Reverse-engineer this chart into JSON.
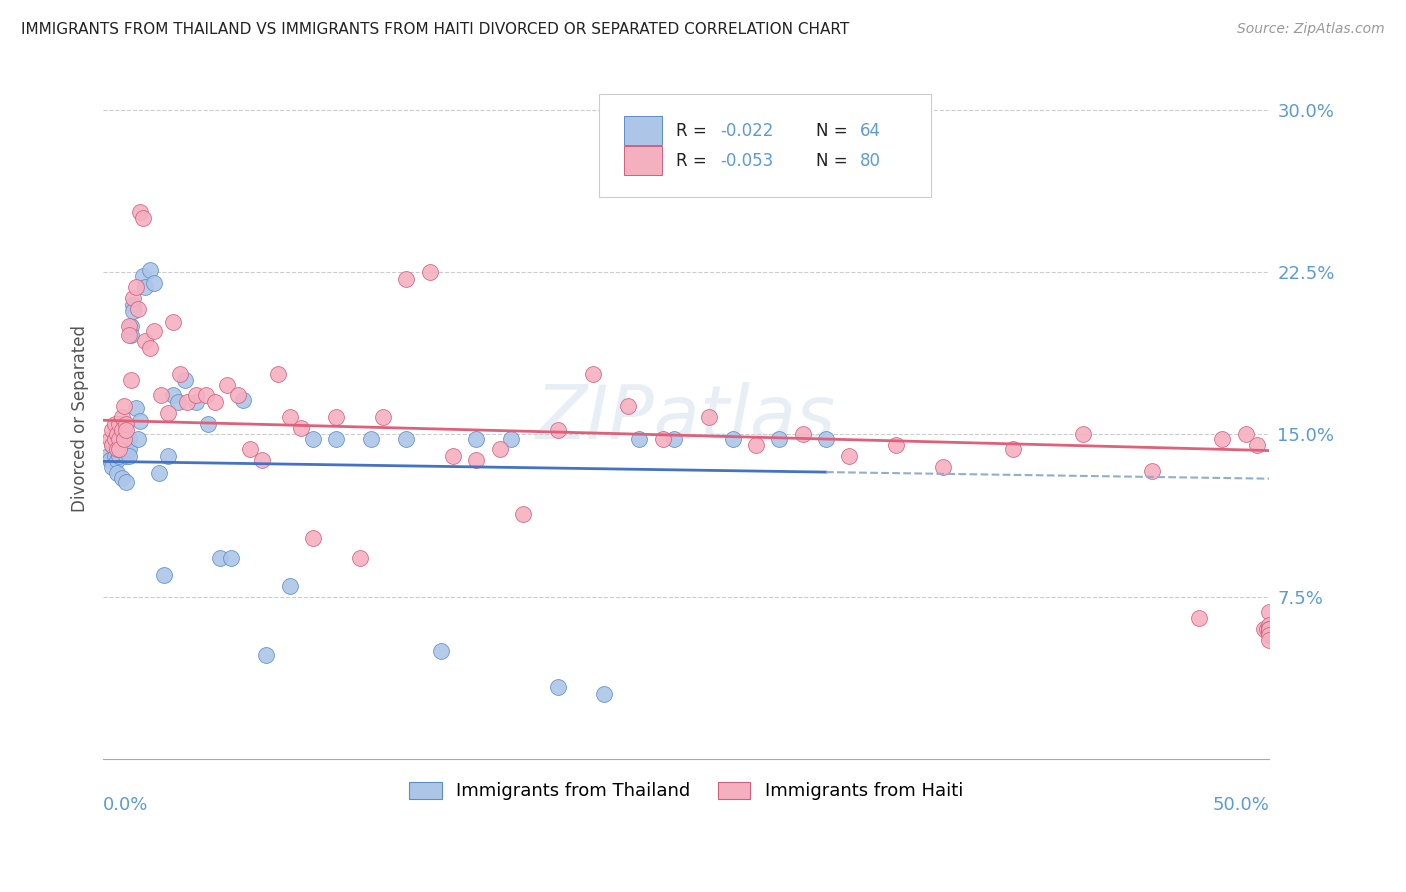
{
  "title": "IMMIGRANTS FROM THAILAND VS IMMIGRANTS FROM HAITI DIVORCED OR SEPARATED CORRELATION CHART",
  "source": "Source: ZipAtlas.com",
  "ylabel": "Divorced or Separated",
  "ytick_values": [
    0.075,
    0.15,
    0.225,
    0.3
  ],
  "ytick_labels": [
    "7.5%",
    "15.0%",
    "22.5%",
    "30.0%"
  ],
  "xlim": [
    0.0,
    0.5
  ],
  "ylim": [
    0.0,
    0.315
  ],
  "legend_r1": "-0.022",
  "legend_n1": "64",
  "legend_r2": "-0.053",
  "legend_n2": "80",
  "color_thailand_fill": "#adc6e8",
  "color_thailand_edge": "#5b8dc8",
  "color_haiti_fill": "#f5b0c0",
  "color_haiti_edge": "#d06080",
  "color_line_thailand": "#4472c4",
  "color_line_haiti": "#e0607a",
  "color_dashed": "#90aecf",
  "color_axis_blue": "#5b9bd5",
  "color_title": "#222222",
  "thailand_x": [
    0.002,
    0.003,
    0.004,
    0.004,
    0.005,
    0.005,
    0.005,
    0.006,
    0.006,
    0.006,
    0.007,
    0.007,
    0.007,
    0.008,
    0.008,
    0.008,
    0.009,
    0.009,
    0.009,
    0.01,
    0.01,
    0.01,
    0.01,
    0.011,
    0.011,
    0.011,
    0.012,
    0.012,
    0.013,
    0.013,
    0.014,
    0.015,
    0.016,
    0.017,
    0.018,
    0.02,
    0.022,
    0.024,
    0.026,
    0.028,
    0.03,
    0.032,
    0.035,
    0.04,
    0.045,
    0.05,
    0.055,
    0.06,
    0.07,
    0.08,
    0.09,
    0.1,
    0.115,
    0.13,
    0.145,
    0.16,
    0.175,
    0.195,
    0.215,
    0.23,
    0.245,
    0.27,
    0.29,
    0.31
  ],
  "thailand_y": [
    0.14,
    0.138,
    0.145,
    0.135,
    0.148,
    0.143,
    0.14,
    0.145,
    0.138,
    0.132,
    0.15,
    0.145,
    0.14,
    0.148,
    0.143,
    0.13,
    0.152,
    0.148,
    0.145,
    0.148,
    0.145,
    0.14,
    0.128,
    0.148,
    0.143,
    0.14,
    0.2,
    0.196,
    0.21,
    0.207,
    0.162,
    0.148,
    0.156,
    0.223,
    0.218,
    0.226,
    0.22,
    0.132,
    0.085,
    0.14,
    0.168,
    0.165,
    0.175,
    0.165,
    0.155,
    0.093,
    0.093,
    0.166,
    0.048,
    0.08,
    0.148,
    0.148,
    0.148,
    0.148,
    0.05,
    0.148,
    0.148,
    0.033,
    0.03,
    0.148,
    0.148,
    0.148,
    0.148,
    0.148
  ],
  "haiti_x": [
    0.003,
    0.004,
    0.004,
    0.005,
    0.005,
    0.006,
    0.006,
    0.007,
    0.007,
    0.007,
    0.008,
    0.008,
    0.009,
    0.009,
    0.01,
    0.01,
    0.011,
    0.011,
    0.012,
    0.013,
    0.014,
    0.015,
    0.016,
    0.017,
    0.018,
    0.02,
    0.022,
    0.025,
    0.028,
    0.03,
    0.033,
    0.036,
    0.04,
    0.044,
    0.048,
    0.053,
    0.058,
    0.063,
    0.068,
    0.075,
    0.08,
    0.085,
    0.09,
    0.1,
    0.11,
    0.12,
    0.13,
    0.14,
    0.15,
    0.16,
    0.17,
    0.18,
    0.195,
    0.21,
    0.225,
    0.24,
    0.26,
    0.28,
    0.3,
    0.32,
    0.34,
    0.36,
    0.39,
    0.42,
    0.45,
    0.47,
    0.48,
    0.49,
    0.495,
    0.498,
    0.499,
    0.5,
    0.5,
    0.5,
    0.5,
    0.5,
    0.5,
    0.5,
    0.5,
    0.5
  ],
  "haiti_y": [
    0.148,
    0.145,
    0.152,
    0.148,
    0.155,
    0.143,
    0.15,
    0.155,
    0.148,
    0.143,
    0.158,
    0.152,
    0.163,
    0.148,
    0.155,
    0.152,
    0.2,
    0.196,
    0.175,
    0.213,
    0.218,
    0.208,
    0.253,
    0.25,
    0.193,
    0.19,
    0.198,
    0.168,
    0.16,
    0.202,
    0.178,
    0.165,
    0.168,
    0.168,
    0.165,
    0.173,
    0.168,
    0.143,
    0.138,
    0.178,
    0.158,
    0.153,
    0.102,
    0.158,
    0.093,
    0.158,
    0.222,
    0.225,
    0.14,
    0.138,
    0.143,
    0.113,
    0.152,
    0.178,
    0.163,
    0.148,
    0.158,
    0.145,
    0.15,
    0.14,
    0.145,
    0.135,
    0.143,
    0.15,
    0.133,
    0.065,
    0.148,
    0.15,
    0.145,
    0.06,
    0.06,
    0.068,
    0.06,
    0.058,
    0.062,
    0.06,
    0.058,
    0.06,
    0.057,
    0.055
  ]
}
